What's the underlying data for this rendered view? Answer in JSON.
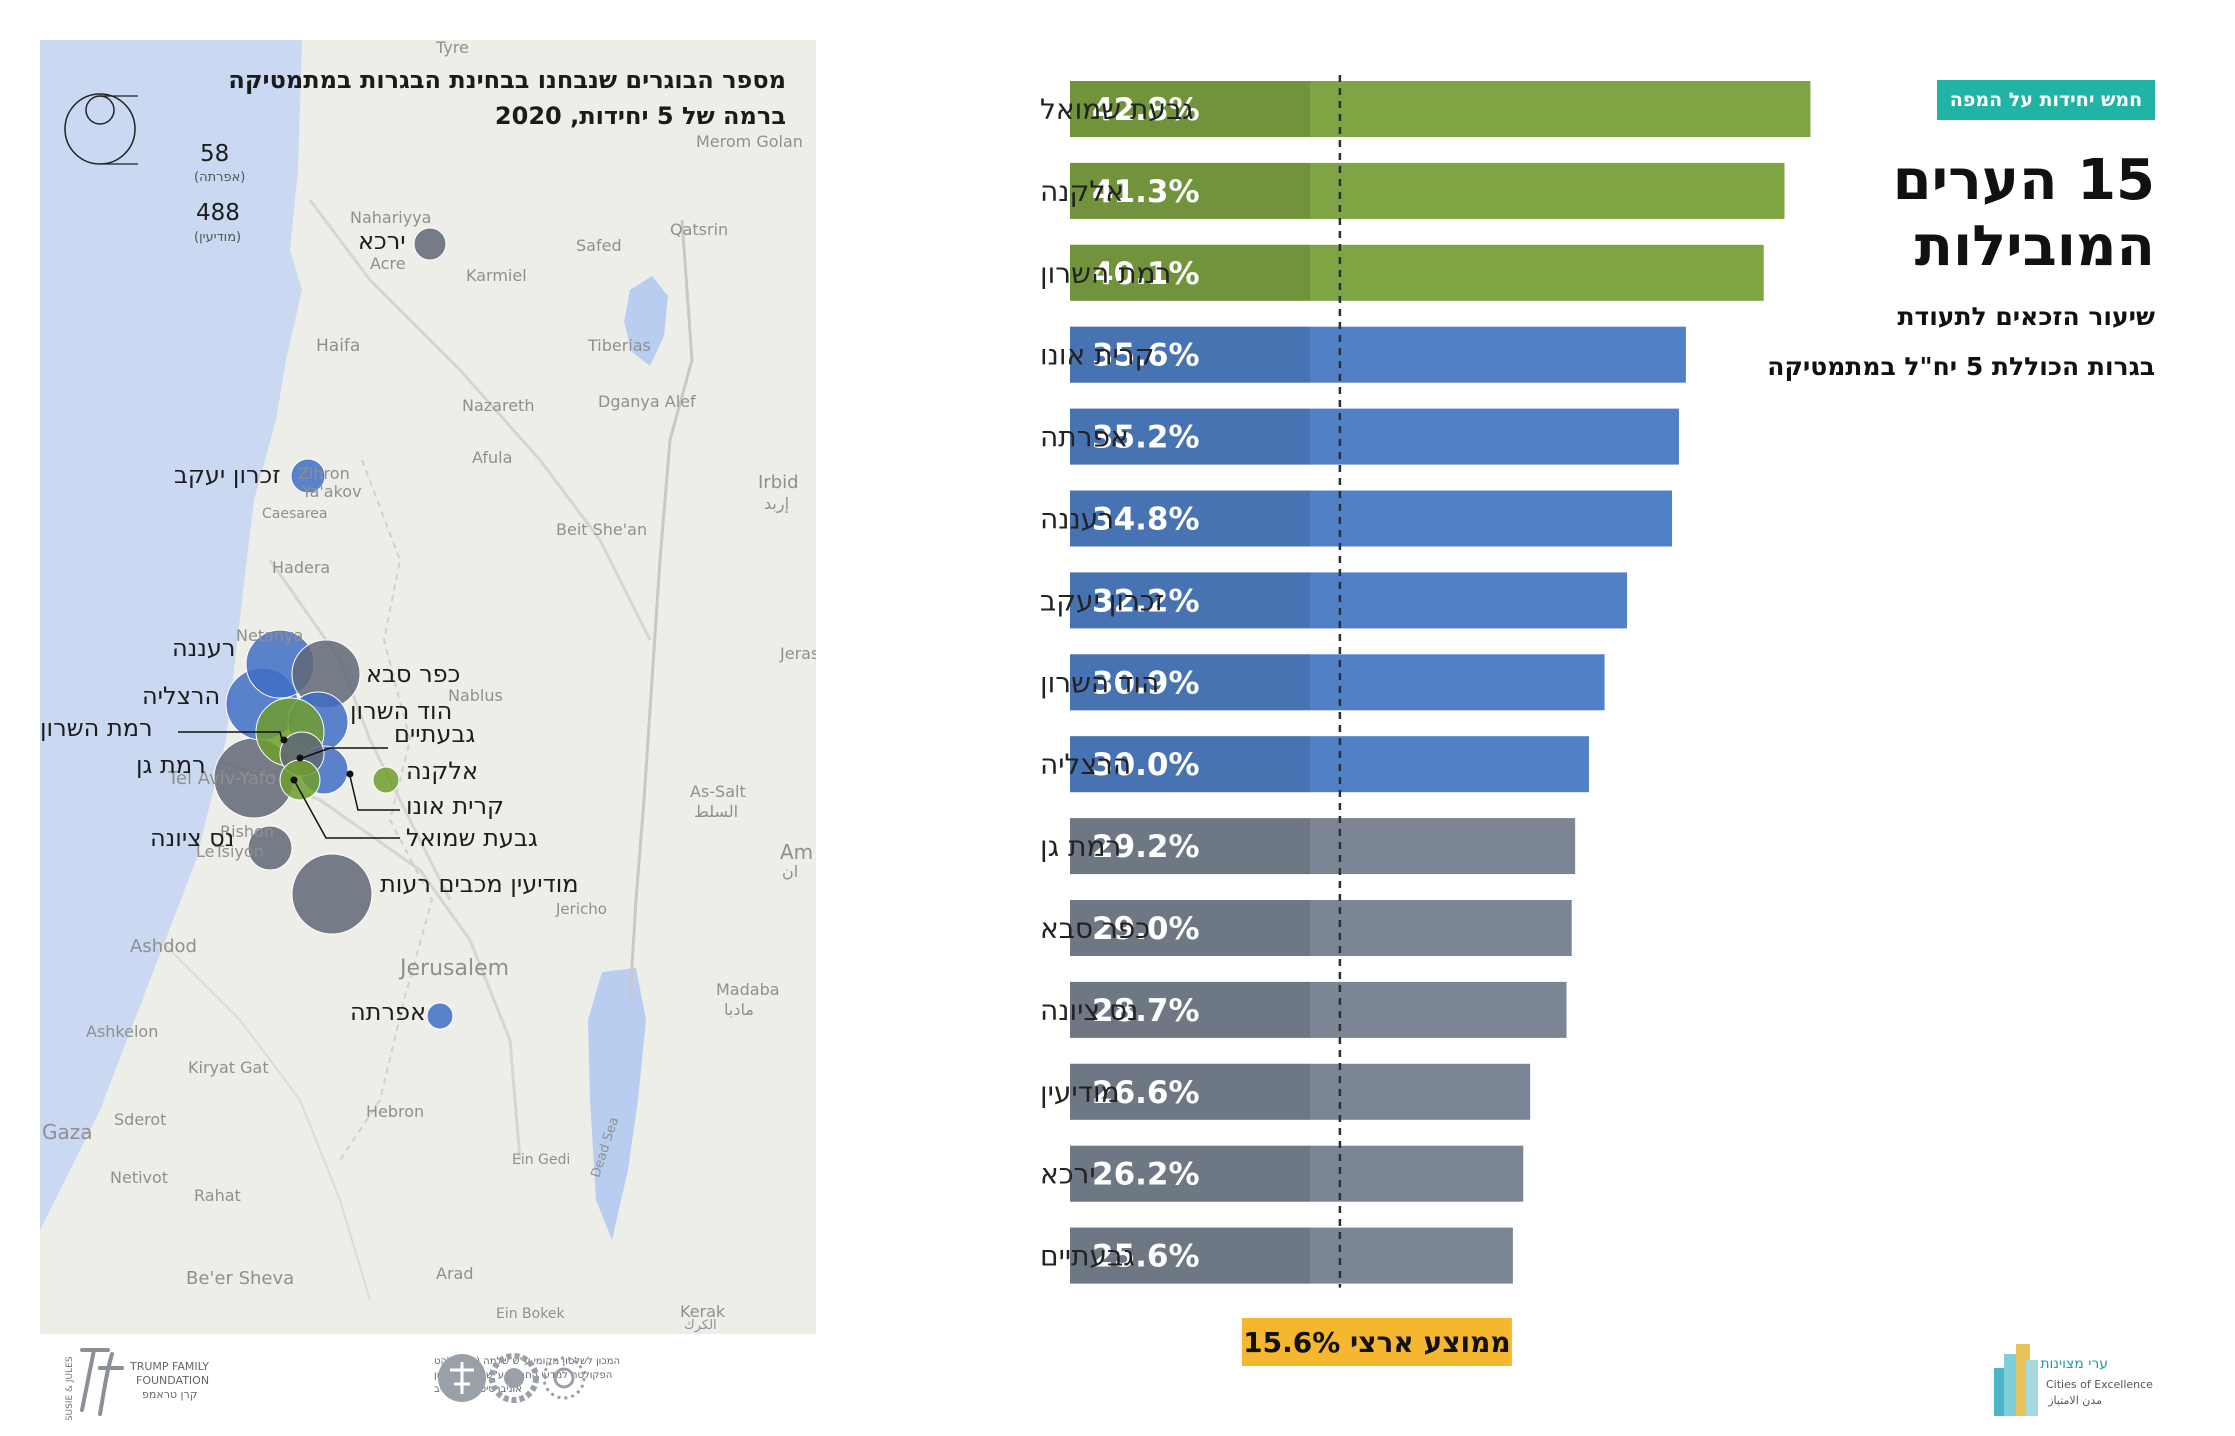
{
  "map": {
    "title_line1": "מספר הבוגרים שנבחנו בבחינת הבגרות במתמטיקה",
    "title_line2": "ברמה של 5 יחידות, 2020",
    "legend": {
      "small_value": "58",
      "small_label": "(אפרתה)",
      "large_value": "488",
      "large_label": "(מודיעין)"
    },
    "city_labels": {
      "yarka": "ירכא",
      "zichron": "זכרון יעקב",
      "raanana": "רעננה",
      "kfar_saba": "כפר סבא",
      "herzliya": "הרצליה",
      "hod_hasharon": "הוד השרון",
      "ramat_hasharon": "רמת השרון",
      "givatayim": "גבעתיים",
      "ramat_gan": "רמת גן",
      "elkana": "אלקנה",
      "kiryat_ono": "קרית אונו",
      "givat_shmuel": "גבעת שמואל",
      "ness_ziona": "נס ציונה",
      "modiin": "מודיעין מכבים רעות",
      "efrata": "אפרתה"
    },
    "places": {
      "nahariyya": "Nahariyya",
      "acre": "Acre",
      "karmiel": "Karmiel",
      "safed": "Safed",
      "qatsrin": "Qatsrin",
      "merom_golan": "Merom Golan",
      "haifa": "Haifa",
      "tiberias": "Tiberias",
      "nazareth": "Nazareth",
      "dganya": "Dganya Alef",
      "afula": "Afula",
      "irbid": "Irbid",
      "irbid_ar": "إربد",
      "zichron_en": "Zihron",
      "yaakov_en": "Ya'akov",
      "caesarea": "Caesarea",
      "beit_shean": "Beit She'an",
      "hadera": "Hadera",
      "netanya": "Netanya",
      "nablus": "Nablus",
      "jerash": "Jeras",
      "tel_aviv": "Tel Aviv-Yafo",
      "as_salt": "As-Salt",
      "as_salt_ar": "السلط",
      "rishon": "Rishon",
      "letsiyon": "LeTsiyon",
      "amman": "Am",
      "amman_ar": "ان",
      "jericho": "Jericho",
      "ashdod": "Ashdod",
      "jerusalem": "Jerusalem",
      "madaba": "Madaba",
      "madaba_ar": "مادبا",
      "ashkelon": "Ashkelon",
      "kiryat_gat": "Kiryat Gat",
      "sderot": "Sderot",
      "gaza": "Gaza",
      "hebron": "Hebron",
      "dead_sea": "Dead Sea",
      "netivot": "Netivot",
      "rahat": "Rahat",
      "ein_gedi": "Ein Gedi",
      "beer_sheva": "Be'er Sheva",
      "arad": "Arad",
      "ein_bokek": "Ein Bokek",
      "kerak": "Kerak",
      "kerak_ar": "الكرك",
      "tyre": "Tyre"
    }
  },
  "header": {
    "tag": "חמש יחידות על המפה",
    "title_line1": "15 הערים",
    "title_line2": "המובילות",
    "subtitle_line1": "שיעור הזכאים לתעודת",
    "subtitle_line2": "בגרות הכוללת 5 יח\"ל במתמטיקה"
  },
  "footer": {
    "foundation_line1": "TRUMP FAMILY",
    "foundation_line2": "FOUNDATION",
    "foundation_he": "קרן טראמפ",
    "institute_line1": "המכון לשלטון מקומי ע\"ש שלמה (צ'יץ) להט",
    "institute_line2": "הפקולטה למדעי החברה ע\"ש גרשון גורדון",
    "institute_line3": "אוניברסיטת תל אביב",
    "brand_he": "ערי מצוינות",
    "brand_en": "Cities of Excellence",
    "brand_ar": "مدن الامتياز",
    "small_vertical": "THE SUSIE & JULES"
  },
  "chart_data": {
    "type": "bar",
    "orientation": "horizontal",
    "title": "15 הערים המובילות",
    "subtitle": "שיעור הזכאים לתעודת בגרות הכוללת 5 יח\"ל במתמטיקה",
    "categories": [
      "גבעת שמואל",
      "אלקנה",
      "רמת השרון",
      "קרית אונו",
      "אפרתה",
      "רעננה",
      "זכרון יעקב",
      "הוד השרון",
      "הרצליה",
      "רמת גן",
      "כפר סבא",
      "נס ציונה",
      "מודיעין",
      "ירכא",
      "גבעתיים"
    ],
    "values": [
      42.8,
      41.3,
      40.1,
      35.6,
      35.2,
      34.8,
      32.2,
      30.9,
      30.0,
      29.2,
      29.0,
      28.7,
      26.6,
      26.2,
      25.6
    ],
    "value_labels": [
      "42.8%",
      "41.3%",
      "40.1%",
      "35.6%",
      "35.2%",
      "34.8%",
      "32.2%",
      "30.9%",
      "30.0%",
      "29.2%",
      "29.0%",
      "28.7%",
      "26.6%",
      "26.2%",
      "25.6%"
    ],
    "groups": [
      "top",
      "top",
      "top",
      "mid",
      "mid",
      "mid",
      "mid",
      "mid",
      "mid",
      "low",
      "low",
      "low",
      "low",
      "low",
      "low"
    ],
    "xlim": [
      0,
      45
    ],
    "reference_line": {
      "value": 15.6,
      "label": "15.6%  ממוצע ארצי"
    },
    "colors": {
      "top": "#7ea443",
      "mid": "#5180c7",
      "low": "#7b8594",
      "average": "#f5b630",
      "track": "#e3e4e9"
    }
  },
  "map_bubbles": [
    {
      "id": "yarka",
      "color": "gray"
    },
    {
      "id": "zichron",
      "color": "blue"
    },
    {
      "id": "raanana",
      "color": "blue"
    },
    {
      "id": "kfar_saba",
      "color": "gray"
    },
    {
      "id": "herzliya",
      "color": "blue"
    },
    {
      "id": "hod_hasharon",
      "color": "blue"
    },
    {
      "id": "ramat_hasharon",
      "color": "green"
    },
    {
      "id": "givatayim",
      "color": "gray"
    },
    {
      "id": "ramat_gan",
      "color": "gray"
    },
    {
      "id": "elkana",
      "color": "green"
    },
    {
      "id": "kiryat_ono",
      "color": "blue"
    },
    {
      "id": "givat_shmuel",
      "color": "green"
    },
    {
      "id": "ness_ziona",
      "color": "gray"
    },
    {
      "id": "modiin",
      "color": "gray"
    },
    {
      "id": "efrata",
      "color": "blue"
    }
  ]
}
